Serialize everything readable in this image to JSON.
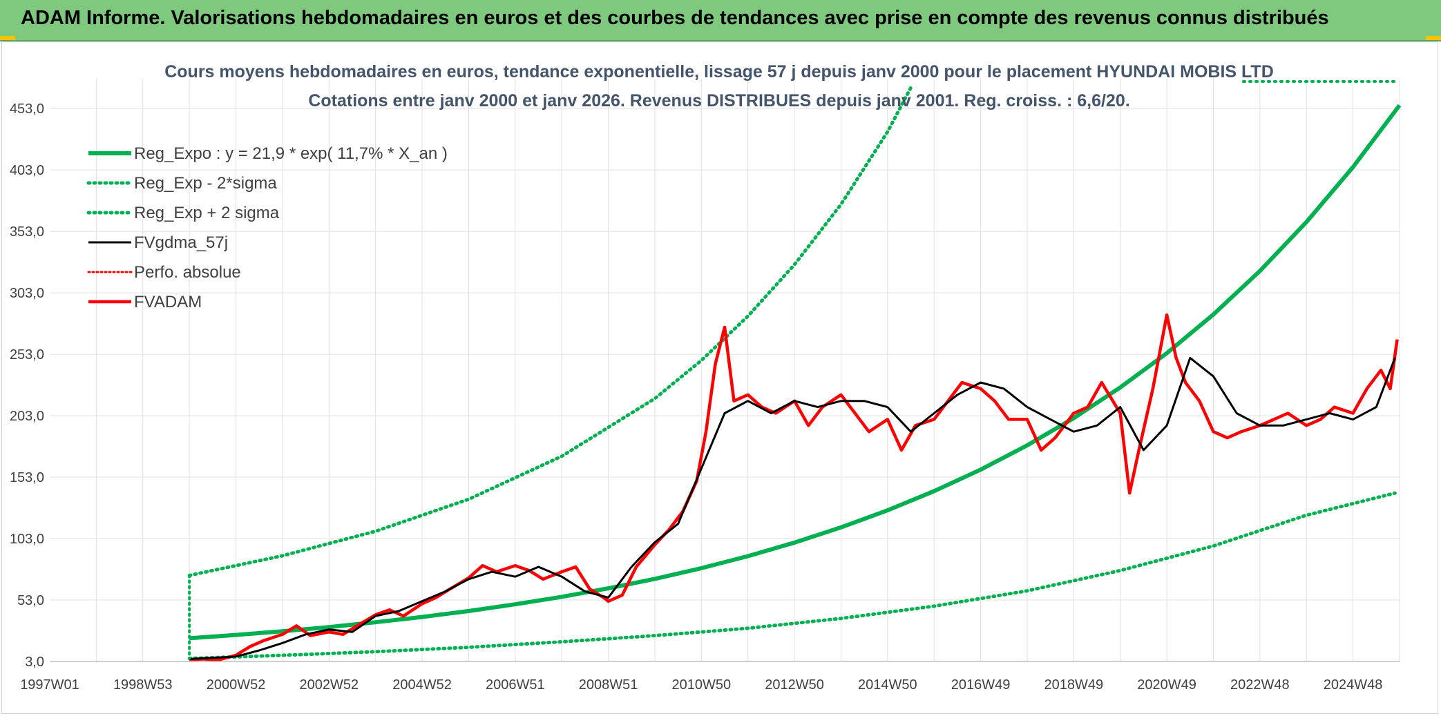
{
  "banner": {
    "title": "ADAM Informe. Valorisations hebdomadaires en euros et des courbes de tendances avec prise en compte des revenus connus distribués"
  },
  "colors": {
    "banner_bg": "#7ec97e",
    "green": "#00b050",
    "red": "#ff0000",
    "black": "#000000",
    "grid": "#e0e0e0"
  },
  "chart_data": {
    "type": "line",
    "title": "Cours moyens hebdomadaires en euros, tendance exponentielle, lissage 57 j depuis janv 2000 pour le placement HYUNDAI MOBIS LTD",
    "subtitle": "Cotations entre janv 2000 et janv 2026. Revenus DISTRIBUES depuis janv 2001. Reg. croiss. : 6,6/20.",
    "xlabel": "",
    "ylabel": "",
    "xlim": [
      1997.0,
      2026.0
    ],
    "ylim": [
      3.0,
      475.0
    ],
    "grid": true,
    "legend_position": "top-left",
    "y_ticks": [
      "3,0",
      "53,0",
      "103,0",
      "153,0",
      "203,0",
      "253,0",
      "303,0",
      "353,0",
      "403,0",
      "453,0"
    ],
    "y_tick_values": [
      3,
      53,
      103,
      153,
      203,
      253,
      303,
      353,
      403,
      453
    ],
    "x_ticks": [
      "1997W01",
      "1998W53",
      "2000W52",
      "2002W52",
      "2004W52",
      "2006W51",
      "2008W51",
      "2010W50",
      "2012W50",
      "2014W50",
      "2016W49",
      "2018W49",
      "2020W49",
      "2022W48",
      "2024W48"
    ],
    "x_tick_values": [
      1997.0,
      1999.0,
      2001.0,
      2003.0,
      2005.0,
      2007.0,
      2009.0,
      2011.0,
      2013.0,
      2015.0,
      2017.0,
      2019.0,
      2021.0,
      2023.0,
      2025.0
    ],
    "series": [
      {
        "name": "Reg_Expo : y = 21,9 * exp( 11,7% *  X_an )",
        "style": "solid-green-thick",
        "x": [
          2000.0,
          2001.0,
          2002.0,
          2003.0,
          2004.0,
          2005.0,
          2006.0,
          2007.0,
          2008.0,
          2009.0,
          2010.0,
          2011.0,
          2012.0,
          2013.0,
          2014.0,
          2015.0,
          2016.0,
          2017.0,
          2018.0,
          2019.0,
          2020.0,
          2021.0,
          2022.0,
          2023.0,
          2024.0,
          2025.0,
          2026.0
        ],
        "values": [
          21.9,
          24.6,
          27.6,
          31.0,
          34.9,
          39.2,
          44.0,
          49.5,
          55.6,
          62.5,
          70.2,
          78.9,
          88.7,
          99.7,
          112.1,
          126.0,
          141.6,
          159.1,
          178.9,
          201.0,
          226.0,
          253.9,
          285.4,
          320.8,
          360.6,
          405.3,
          455.6
        ]
      },
      {
        "name": "Reg_Exp - 2*sigma",
        "style": "dotted-green",
        "x": [
          2000.0,
          2002.0,
          2004.0,
          2006.0,
          2008.0,
          2010.0,
          2012.0,
          2014.0,
          2016.0,
          2018.0,
          2020.0,
          2022.0,
          2024.0,
          2025.9
        ],
        "values": [
          5.5,
          8.0,
          11.0,
          14.5,
          19.0,
          24.0,
          30.0,
          38.0,
          48.0,
          60.5,
          77.0,
          97.0,
          122.0,
          140.0
        ]
      },
      {
        "name": "Reg_Exp + 2 sigma",
        "style": "dotted-green",
        "x": [
          2000.0,
          2002.0,
          2004.0,
          2006.0,
          2008.0,
          2010.0,
          2011.0,
          2012.0,
          2013.0,
          2014.0,
          2015.0,
          2015.5
        ],
        "values": [
          73.0,
          89.0,
          109.0,
          135.0,
          170.0,
          217.0,
          248.0,
          284.0,
          326.0,
          375.0,
          434.0,
          470.0
        ]
      },
      {
        "name": "FVgdma_57j",
        "style": "solid-black",
        "x": [
          2000.0,
          2000.5,
          2001.0,
          2001.5,
          2002.0,
          2002.5,
          2003.0,
          2003.5,
          2004.0,
          2004.5,
          2005.0,
          2005.5,
          2006.0,
          2006.5,
          2007.0,
          2007.5,
          2008.0,
          2008.5,
          2009.0,
          2009.5,
          2010.0,
          2010.5,
          2011.0,
          2011.5,
          2012.0,
          2012.5,
          2013.0,
          2013.5,
          2014.0,
          2014.5,
          2015.0,
          2015.5,
          2016.0,
          2016.5,
          2017.0,
          2017.5,
          2018.0,
          2018.5,
          2019.0,
          2019.5,
          2020.0,
          2020.5,
          2021.0,
          2021.5,
          2022.0,
          2022.5,
          2023.0,
          2023.5,
          2024.0,
          2024.5,
          2025.0,
          2025.5,
          2025.9
        ],
        "values": [
          5,
          6,
          7,
          12,
          18,
          25,
          29,
          27,
          40,
          44,
          52,
          60,
          70,
          76,
          72,
          80,
          72,
          60,
          55,
          80,
          100,
          115,
          160,
          205,
          215,
          205,
          215,
          210,
          215,
          215,
          210,
          190,
          205,
          220,
          230,
          225,
          210,
          200,
          190,
          195,
          210,
          175,
          195,
          250,
          235,
          205,
          195,
          195,
          200,
          205,
          200,
          210,
          250
        ]
      },
      {
        "name": "Perfo. absolue",
        "style": "dotted-red",
        "x": [],
        "values": []
      },
      {
        "name": "FVADAM",
        "style": "solid-red-thick",
        "x": [
          2000.0,
          2000.3,
          2000.6,
          2001.0,
          2001.3,
          2001.6,
          2002.0,
          2002.3,
          2002.6,
          2003.0,
          2003.3,
          2003.6,
          2004.0,
          2004.3,
          2004.6,
          2005.0,
          2005.3,
          2005.6,
          2006.0,
          2006.3,
          2006.6,
          2007.0,
          2007.3,
          2007.6,
          2008.0,
          2008.3,
          2008.6,
          2008.9,
          2009.0,
          2009.3,
          2009.6,
          2010.0,
          2010.3,
          2010.6,
          2010.9,
          2011.1,
          2011.3,
          2011.5,
          2011.7,
          2012.0,
          2012.3,
          2012.6,
          2013.0,
          2013.3,
          2013.6,
          2014.0,
          2014.3,
          2014.6,
          2015.0,
          2015.3,
          2015.6,
          2016.0,
          2016.3,
          2016.6,
          2017.0,
          2017.3,
          2017.6,
          2018.0,
          2018.3,
          2018.6,
          2019.0,
          2019.3,
          2019.6,
          2020.0,
          2020.2,
          2020.4,
          2020.7,
          2021.0,
          2021.2,
          2021.4,
          2021.7,
          2022.0,
          2022.3,
          2022.6,
          2023.0,
          2023.3,
          2023.6,
          2024.0,
          2024.3,
          2024.6,
          2025.0,
          2025.3,
          2025.6,
          2025.8,
          2025.95
        ],
        "values": [
          4,
          5,
          4,
          8,
          15,
          20,
          25,
          32,
          24,
          27,
          25,
          32,
          41,
          45,
          40,
          50,
          55,
          62,
          71,
          81,
          76,
          81,
          77,
          70,
          76,
          80,
          62,
          55,
          52,
          57,
          80,
          98,
          110,
          125,
          150,
          190,
          245,
          275,
          215,
          220,
          210,
          205,
          215,
          195,
          210,
          220,
          205,
          190,
          200,
          175,
          195,
          200,
          215,
          230,
          225,
          215,
          200,
          200,
          175,
          185,
          205,
          210,
          230,
          205,
          140,
          175,
          225,
          285,
          250,
          230,
          215,
          190,
          185,
          190,
          195,
          200,
          205,
          195,
          200,
          210,
          205,
          225,
          240,
          225,
          265
        ]
      }
    ]
  }
}
